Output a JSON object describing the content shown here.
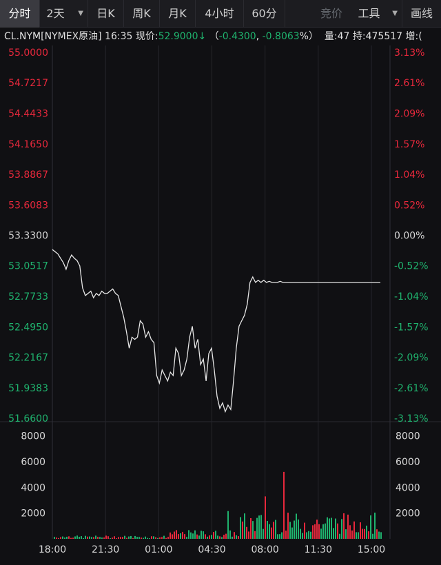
{
  "toolbar": {
    "tabs": [
      {
        "label": "分时",
        "active": true
      },
      {
        "label": "2天",
        "dropdown": true
      },
      {
        "label": "日K"
      },
      {
        "label": "周K"
      },
      {
        "label": "月K"
      },
      {
        "label": "4小时"
      },
      {
        "label": "60分"
      },
      {
        "label": "竞价",
        "dimmed": true
      },
      {
        "label": "工具",
        "dropdown": true
      },
      {
        "label": "画线"
      }
    ]
  },
  "quote": {
    "symbol": "CL.NYM[NYMEX原油]",
    "time": "16:35",
    "price_label": "现价:",
    "price": "52.9000",
    "change_open": "（",
    "change": "-0.4300",
    "sep": ", ",
    "change_pct": "-0.8063",
    "pct_close": "%）",
    "volume_label": "量:",
    "volume": "47",
    "oi_label": "持:",
    "oi": "475517",
    "more": "增:("
  },
  "colors": {
    "up": "#e8283c",
    "down": "#1fb36e",
    "flat": "#d8d8d8",
    "line": "#e6e6e6"
  },
  "chart_data": [
    {
      "type": "line",
      "y_left_ticks": [
        "55.0000",
        "54.7217",
        "54.4433",
        "54.1650",
        "53.8867",
        "53.6083",
        "53.3300",
        "53.0517",
        "52.7733",
        "52.4950",
        "52.2167",
        "51.9383",
        "51.6600"
      ],
      "y_right_ticks": [
        "3.13%",
        "2.61%",
        "2.09%",
        "1.57%",
        "1.04%",
        "0.52%",
        "0.00%",
        "-0.52%",
        "-1.04%",
        "-1.57%",
        "-2.09%",
        "-2.61%",
        "-3.13%"
      ],
      "ylim": [
        51.66,
        55.0
      ],
      "reference_price": 53.33,
      "x_ticks": [
        "18:00",
        "21:30",
        "01:00",
        "04:30",
        "08:00",
        "11:30",
        "15:00"
      ],
      "x": [
        0,
        4,
        8,
        12,
        16,
        20,
        24,
        28,
        32,
        36,
        40,
        44,
        48,
        52,
        56,
        60,
        64,
        68,
        72,
        76,
        80,
        84,
        88,
        92,
        96,
        100,
        104,
        108,
        112,
        116,
        120,
        124,
        128,
        132,
        136,
        140,
        144,
        148,
        152,
        156,
        160,
        164,
        168,
        172,
        176,
        180,
        184,
        188,
        192,
        196,
        200,
        204,
        208,
        212,
        216,
        220,
        224,
        228,
        232,
        236,
        240,
        244,
        248,
        252,
        256,
        260,
        264,
        268,
        272,
        276,
        280,
        284,
        288,
        292,
        296,
        300,
        304,
        308,
        312,
        316,
        320,
        324,
        328,
        332,
        336,
        340,
        344,
        348,
        352,
        356,
        360,
        364,
        368,
        372,
        376,
        380,
        384,
        388,
        392,
        396,
        400,
        404,
        408,
        412,
        416,
        420,
        424,
        428,
        432,
        436,
        440,
        444,
        448,
        452,
        456,
        460,
        464,
        468,
        472,
        476,
        478
      ],
      "values": [
        53.2,
        53.18,
        53.16,
        53.12,
        53.08,
        53.02,
        53.1,
        53.15,
        53.12,
        53.1,
        53.05,
        52.85,
        52.78,
        52.8,
        52.82,
        52.76,
        52.8,
        52.78,
        52.82,
        52.8,
        52.8,
        52.82,
        52.84,
        52.8,
        52.78,
        52.68,
        52.58,
        52.45,
        52.3,
        52.4,
        52.38,
        52.4,
        52.55,
        52.52,
        52.4,
        52.45,
        52.38,
        52.35,
        52.05,
        51.98,
        52.1,
        52.05,
        52.0,
        52.08,
        52.05,
        52.3,
        52.25,
        52.05,
        52.1,
        52.2,
        52.4,
        52.5,
        52.3,
        52.38,
        52.15,
        52.2,
        52.0,
        52.25,
        52.3,
        52.1,
        51.86,
        51.75,
        51.8,
        51.72,
        51.78,
        51.74,
        52.0,
        52.3,
        52.5,
        52.55,
        52.6,
        52.7,
        52.9,
        52.95,
        52.9,
        52.92,
        52.9,
        52.92,
        52.9,
        52.91,
        52.9,
        52.9,
        52.9,
        52.91,
        52.9,
        52.9,
        52.9,
        52.9,
        52.9,
        52.9,
        52.9,
        52.9,
        52.9,
        52.9,
        52.9,
        52.9,
        52.9,
        52.9,
        52.9,
        52.9,
        52.9,
        52.9,
        52.9,
        52.9,
        52.9,
        52.9,
        52.9,
        52.9,
        52.9,
        52.9,
        52.9,
        52.9,
        52.9,
        52.9,
        52.9,
        52.9,
        52.9,
        52.9,
        52.9,
        52.9,
        52.9
      ]
    },
    {
      "type": "bar",
      "y_left_ticks": [
        "8000",
        "6000",
        "4000",
        "2000"
      ],
      "y_right_ticks": [
        "8000",
        "6000",
        "4000",
        "2000"
      ],
      "ylim": [
        0,
        9000
      ]
    }
  ]
}
